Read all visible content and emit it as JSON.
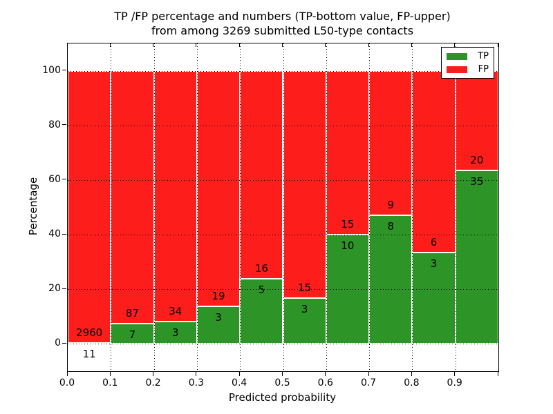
{
  "figure": {
    "title_line1": "TP /FP percentage and numbers (TP-bottom value, FP-upper)",
    "title_line2": "from among 3269 submitted L50-type contacts",
    "xlabel": "Predicted probability",
    "ylabel": "Percentage"
  },
  "legend": {
    "position": "upper right",
    "items": [
      {
        "label": "TP",
        "color": "#2d9428"
      },
      {
        "label": "FP",
        "color": "#fd1d1b"
      }
    ]
  },
  "chart_data": {
    "type": "bar",
    "stacked": true,
    "normalized_to_percent": true,
    "title": "TP /FP percentage and numbers (TP-bottom value, FP-upper) from among 3269 submitted L50-type contacts",
    "xlabel": "Predicted probability",
    "ylabel": "Percentage",
    "total_contacts": 3269,
    "bin_start": [
      0.0,
      0.1,
      0.2,
      0.3,
      0.4,
      0.5,
      0.6,
      0.7,
      0.8,
      0.9
    ],
    "bin_width": 0.1,
    "x_tick_labels": [
      "0.0",
      "0.1",
      "0.2",
      "0.3",
      "0.4",
      "0.5",
      "0.6",
      "0.7",
      "0.8",
      "0.9"
    ],
    "y_ticks": [
      0,
      20,
      40,
      60,
      80,
      100
    ],
    "y_tick_labels": [
      "0",
      "20",
      "40",
      "60",
      "80",
      "100"
    ],
    "xlim": [
      0.0,
      1.0
    ],
    "ylim": [
      -10,
      110
    ],
    "grid": true,
    "grid_style": "dotted",
    "legend_position": "upper right",
    "series": [
      {
        "name": "TP",
        "color": "#2d9428",
        "counts": [
          11,
          7,
          3,
          3,
          5,
          3,
          10,
          8,
          3,
          35
        ],
        "percent": [
          0.37,
          7.45,
          8.11,
          13.64,
          23.81,
          16.67,
          40.0,
          47.06,
          33.33,
          63.64
        ]
      },
      {
        "name": "FP",
        "color": "#fd1d1b",
        "counts": [
          2960,
          87,
          34,
          19,
          16,
          15,
          15,
          9,
          6,
          20
        ],
        "percent": [
          99.63,
          92.55,
          91.89,
          86.36,
          76.19,
          83.33,
          60.0,
          52.94,
          66.67,
          36.36
        ]
      }
    ]
  }
}
